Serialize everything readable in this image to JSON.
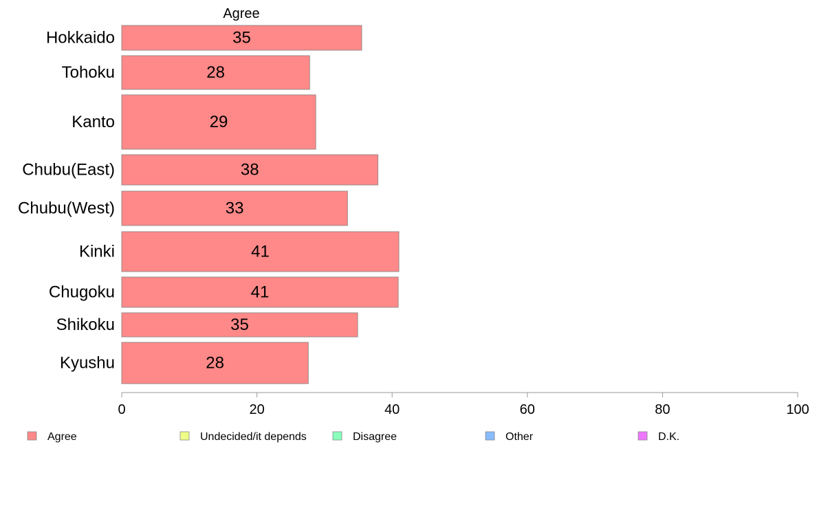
{
  "chart_data": {
    "type": "bar",
    "orientation": "horizontal",
    "title": "Agree",
    "categories": [
      "Hokkaido",
      "Tohoku",
      "Kanto",
      "Chubu(East)",
      "Chubu(West)",
      "Kinki",
      "Chugoku",
      "Shikoku",
      "Kyushu"
    ],
    "series": [
      {
        "name": "Agree",
        "values": [
          35.5,
          27.8,
          28.7,
          37.9,
          33.4,
          41.0,
          40.9,
          34.9,
          27.6
        ],
        "labels": [
          "35",
          "28",
          "29",
          "38",
          "33",
          "41",
          "41",
          "35",
          "28"
        ],
        "color": "#ff8888"
      }
    ],
    "xlim": [
      0,
      100
    ],
    "xticks": [
      0,
      20,
      40,
      60,
      80,
      100
    ],
    "xtick_labels": [
      "0",
      "20",
      "40",
      "60",
      "80",
      "100"
    ],
    "grid": false,
    "legend": {
      "position": "bottom",
      "entries": [
        {
          "label": "Agree",
          "color": "#ff8888"
        },
        {
          "label": "Undecided/it depends",
          "color": "#eeff88"
        },
        {
          "label": "Disagree",
          "color": "#88ffbb"
        },
        {
          "label": "Other",
          "color": "#88bbff"
        },
        {
          "label": "D.K.",
          "color": "#ee77ff"
        }
      ]
    }
  }
}
